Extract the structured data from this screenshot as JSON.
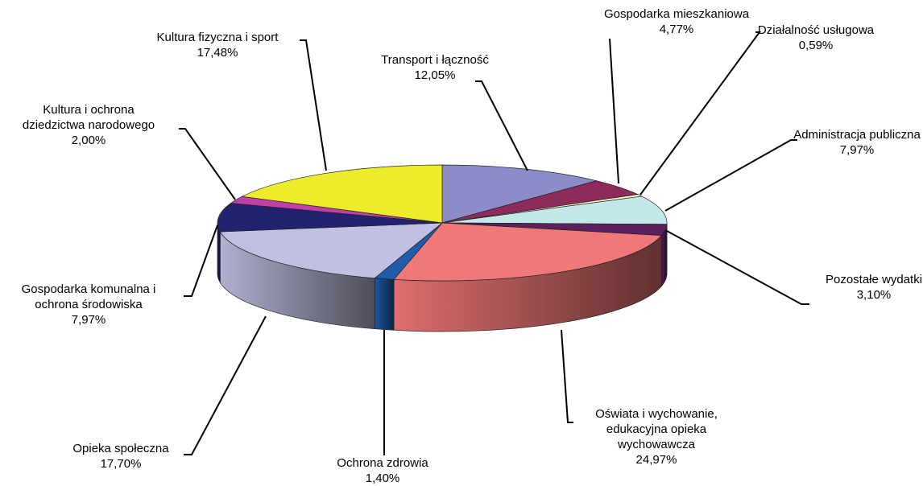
{
  "chart_data": {
    "type": "pie",
    "categories": [
      "Transport i łączność",
      "Gospodarka mieszkaniowa",
      "Działalność usługowa",
      "Administracja publiczna",
      "Pozostałe wydatki",
      "Oświata i wychowanie,\nedukacyjna opieka\nwychowawcza",
      "Ochrona zdrowia",
      "Opieka społeczna",
      "Gospodarka komunalna i\nochrona środowiska",
      "Kultura i ochrona\ndziedzictwa narodowego",
      "Kultura fizyczna i sport"
    ],
    "values": [
      12.05,
      4.77,
      0.59,
      7.97,
      3.1,
      24.97,
      1.4,
      17.7,
      7.97,
      2.0,
      17.48
    ],
    "value_labels": [
      "12,05%",
      "4,77%",
      "0,59%",
      "7,97%",
      "3,10%",
      "24,97%",
      "1,40%",
      "17,70%",
      "7,97%",
      "2,00%",
      "17,48%"
    ],
    "colors": [
      "#8c8cc8",
      "#8e2a5c",
      "#ffffc8",
      "#c4e8ea",
      "#5c1f60",
      "#f07878",
      "#1f5cac",
      "#c0c0e2",
      "#222270",
      "#c040a8",
      "#ecec2c"
    ]
  }
}
